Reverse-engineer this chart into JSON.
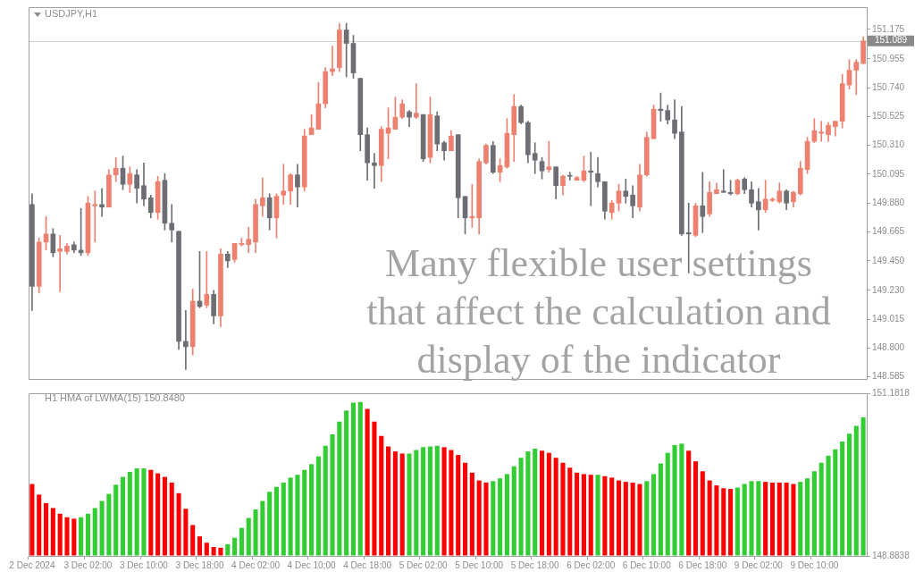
{
  "chart_data": [
    {
      "type": "candlestick",
      "title": "USDJPY,H1",
      "categories": [
        null,
        null,
        null,
        null,
        null,
        null,
        null,
        null,
        null,
        null,
        null,
        null,
        null,
        null,
        null,
        null,
        null,
        null,
        null,
        null,
        null,
        null,
        null,
        null,
        null,
        null,
        null,
        null,
        null,
        null,
        null,
        null,
        null,
        null,
        null,
        null,
        null,
        null,
        null,
        null,
        null,
        null,
        null,
        null,
        null,
        null,
        null,
        null,
        null,
        null,
        null,
        null,
        null,
        null,
        null,
        null,
        null,
        null,
        null,
        null,
        null,
        null,
        null,
        null,
        null,
        null,
        null,
        null,
        null,
        null,
        null,
        null,
        null,
        null,
        null,
        null,
        null,
        null,
        null,
        null,
        null,
        null,
        null,
        null,
        null,
        null,
        null,
        null,
        null,
        null,
        null,
        null,
        null,
        null,
        null,
        null,
        null,
        null,
        null,
        null,
        null,
        null,
        null,
        null,
        null,
        null,
        null,
        null,
        null,
        null,
        null,
        null,
        null,
        null,
        null,
        null,
        null,
        null,
        null,
        null
      ],
      "ohlc": [
        [
          149.87,
          149.95,
          149.08,
          149.26
        ],
        [
          149.26,
          149.62,
          149.21,
          149.59
        ],
        [
          149.59,
          149.78,
          149.53,
          149.65
        ],
        [
          149.65,
          149.69,
          149.48,
          149.51
        ],
        [
          149.52,
          149.64,
          149.22,
          149.54
        ],
        [
          149.52,
          149.58,
          149.5,
          149.56
        ],
        [
          149.57,
          149.59,
          149.51,
          149.53
        ],
        [
          149.53,
          149.84,
          149.49,
          149.51
        ],
        [
          149.51,
          149.93,
          149.49,
          149.88
        ],
        [
          149.86,
          149.97,
          149.59,
          149.87
        ],
        [
          149.87,
          149.99,
          149.78,
          149.85
        ],
        [
          149.85,
          150.13,
          149.85,
          150.09
        ],
        [
          150.09,
          150.22,
          150.04,
          150.14
        ],
        [
          150.14,
          150.23,
          149.98,
          150.02
        ],
        [
          150.02,
          150.15,
          149.96,
          150.1
        ],
        [
          150.09,
          150.13,
          149.88,
          149.99
        ],
        [
          150.01,
          150.18,
          149.86,
          149.91
        ],
        [
          149.92,
          149.94,
          149.77,
          149.81
        ],
        [
          149.81,
          150.08,
          149.76,
          150.04
        ],
        [
          150.05,
          150.1,
          149.68,
          149.73
        ],
        [
          149.73,
          149.87,
          149.59,
          149.68
        ],
        [
          149.67,
          149.67,
          148.79,
          148.85
        ],
        [
          148.85,
          149.08,
          148.64,
          148.81
        ],
        [
          148.81,
          149.24,
          148.75,
          149.15
        ],
        [
          149.15,
          149.52,
          149.1,
          149.11
        ],
        [
          149.12,
          149.52,
          149.1,
          149.2
        ],
        [
          149.2,
          149.23,
          148.98,
          149.04
        ],
        [
          149.04,
          149.54,
          148.96,
          149.5
        ],
        [
          149.5,
          149.52,
          149.4,
          149.45
        ],
        [
          149.46,
          149.58,
          149.44,
          149.58
        ],
        [
          149.57,
          149.62,
          149.56,
          149.58
        ],
        [
          149.57,
          149.7,
          149.51,
          149.61
        ],
        [
          149.59,
          149.91,
          149.51,
          149.87
        ],
        [
          149.86,
          150.07,
          149.78,
          149.92
        ],
        [
          149.92,
          149.95,
          149.68,
          149.77
        ],
        [
          149.77,
          149.95,
          149.62,
          149.93
        ],
        [
          149.94,
          150.17,
          149.87,
          149.97
        ],
        [
          149.97,
          150.1,
          149.87,
          150.09
        ],
        [
          150.09,
          150.17,
          149.85,
          150.0
        ],
        [
          150.0,
          150.43,
          149.97,
          150.38
        ],
        [
          150.39,
          150.54,
          150.39,
          150.44
        ],
        [
          150.43,
          150.78,
          150.43,
          150.62
        ],
        [
          150.62,
          150.89,
          150.59,
          150.86
        ],
        [
          150.86,
          151.05,
          150.83,
          150.88
        ],
        [
          150.89,
          151.22,
          150.86,
          151.17
        ],
        [
          151.17,
          151.22,
          150.82,
          151.07
        ],
        [
          151.07,
          151.13,
          150.81,
          150.85
        ],
        [
          150.81,
          150.81,
          150.27,
          150.39
        ],
        [
          150.39,
          150.44,
          150.05,
          150.18
        ],
        [
          150.18,
          150.25,
          149.99,
          150.16
        ],
        [
          150.16,
          150.45,
          150.04,
          150.43
        ],
        [
          150.4,
          150.59,
          150.21,
          150.44
        ],
        [
          150.43,
          150.67,
          150.43,
          150.52
        ],
        [
          150.52,
          150.65,
          150.51,
          150.62
        ],
        [
          150.56,
          150.57,
          150.45,
          150.52
        ],
        [
          150.52,
          150.77,
          150.51,
          150.55
        ],
        [
          150.54,
          150.54,
          150.19,
          150.21
        ],
        [
          150.22,
          150.67,
          150.18,
          150.54
        ],
        [
          150.53,
          150.56,
          150.27,
          150.32
        ],
        [
          150.33,
          150.34,
          150.2,
          150.27
        ],
        [
          150.27,
          150.42,
          150.27,
          150.38
        ],
        [
          150.39,
          150.39,
          149.77,
          149.92
        ],
        [
          149.93,
          149.93,
          149.65,
          149.77
        ],
        [
          149.77,
          150.02,
          149.7,
          149.78
        ],
        [
          149.77,
          150.21,
          149.65,
          150.19
        ],
        [
          150.18,
          150.32,
          150.17,
          150.31
        ],
        [
          150.31,
          150.34,
          150.1,
          150.11
        ],
        [
          150.11,
          150.21,
          150.04,
          150.16
        ],
        [
          150.15,
          150.51,
          150.14,
          150.4
        ],
        [
          150.39,
          150.69,
          150.19,
          150.6
        ],
        [
          150.6,
          150.61,
          150.47,
          150.48
        ],
        [
          150.48,
          150.49,
          150.18,
          150.24
        ],
        [
          150.25,
          150.33,
          150.1,
          150.2
        ],
        [
          150.19,
          150.22,
          150.06,
          150.12
        ],
        [
          150.13,
          150.34,
          150.11,
          150.15
        ],
        [
          150.15,
          150.15,
          149.91,
          150.01
        ],
        [
          150.01,
          150.09,
          149.94,
          150.08
        ],
        [
          150.08,
          150.11,
          150.05,
          150.08
        ],
        [
          150.05,
          150.08,
          150.05,
          150.07
        ],
        [
          150.05,
          150.23,
          150.04,
          150.12
        ],
        [
          150.12,
          150.26,
          149.86,
          150.11
        ],
        [
          150.1,
          150.22,
          150.0,
          150.04
        ],
        [
          150.04,
          150.04,
          149.76,
          149.82
        ],
        [
          149.81,
          149.9,
          149.76,
          149.88
        ],
        [
          149.88,
          150.02,
          149.82,
          149.97
        ],
        [
          149.97,
          150.06,
          149.88,
          149.93
        ],
        [
          149.94,
          150.01,
          149.77,
          149.86
        ],
        [
          149.85,
          150.17,
          149.82,
          150.09
        ],
        [
          150.09,
          150.41,
          150.08,
          150.37
        ],
        [
          150.36,
          150.61,
          150.36,
          150.58
        ],
        [
          150.58,
          150.7,
          150.49,
          150.57
        ],
        [
          150.57,
          150.61,
          150.47,
          150.5
        ],
        [
          150.5,
          150.65,
          150.36,
          150.4
        ],
        [
          150.41,
          150.6,
          149.64,
          149.65
        ],
        [
          149.66,
          149.88,
          149.36,
          149.65
        ],
        [
          149.64,
          149.88,
          149.63,
          149.86
        ],
        [
          149.86,
          150.11,
          149.66,
          149.78
        ],
        [
          149.8,
          150.04,
          149.78,
          149.96
        ],
        [
          149.95,
          150.03,
          149.95,
          149.98
        ],
        [
          149.97,
          150.13,
          149.96,
          149.96
        ],
        [
          149.96,
          150.05,
          149.94,
          149.95
        ],
        [
          149.95,
          150.06,
          149.94,
          150.05
        ],
        [
          150.06,
          150.07,
          149.95,
          149.98
        ],
        [
          149.98,
          150.04,
          149.85,
          149.88
        ],
        [
          149.89,
          149.99,
          149.68,
          149.83
        ],
        [
          149.83,
          150.05,
          149.81,
          149.91
        ],
        [
          149.9,
          149.92,
          149.89,
          149.91
        ],
        [
          149.89,
          150.03,
          149.88,
          149.97
        ],
        [
          149.97,
          149.98,
          149.83,
          149.88
        ],
        [
          149.89,
          149.97,
          149.85,
          149.96
        ],
        [
          149.95,
          150.19,
          149.94,
          150.14
        ],
        [
          150.13,
          150.37,
          150.1,
          150.34
        ],
        [
          150.34,
          150.51,
          150.33,
          150.42
        ],
        [
          150.4,
          150.49,
          150.34,
          150.41
        ],
        [
          150.39,
          150.48,
          150.34,
          150.46
        ],
        [
          150.45,
          150.49,
          150.38,
          150.49
        ],
        [
          150.49,
          150.84,
          150.44,
          150.77
        ],
        [
          150.76,
          150.95,
          150.73,
          150.87
        ],
        [
          150.87,
          150.95,
          150.69,
          150.93
        ],
        [
          150.92,
          151.12,
          150.92,
          151.089
        ]
      ],
      "colors": [
        "#6c6e73",
        "#ee8070",
        "#ee8070",
        "#6c6e73",
        "#ee8070",
        "#ee8070",
        "#6c6e73",
        "#6c6e73",
        "#ee8070",
        "#ee8070",
        "#6c6e73",
        "#ee8070",
        "#ee8070",
        "#6c6e73",
        "#ee8070",
        "#6c6e73",
        "#6c6e73",
        "#6c6e73",
        "#ee8070",
        "#6c6e73",
        "#6c6e73",
        "#6c6e73",
        "#6c6e73",
        "#ee8070",
        "#6c6e73",
        "#ee8070",
        "#6c6e73",
        "#ee8070",
        "#6c6e73",
        "#ee8070",
        "#ee8070",
        "#ee8070",
        "#ee8070",
        "#ee8070",
        "#6c6e73",
        "#ee8070",
        "#ee8070",
        "#ee8070",
        "#6c6e73",
        "#ee8070",
        "#ee8070",
        "#ee8070",
        "#ee8070",
        "#ee8070",
        "#ee8070",
        "#6c6e73",
        "#6c6e73",
        "#6c6e73",
        "#6c6e73",
        "#6c6e73",
        "#ee8070",
        "#ee8070",
        "#ee8070",
        "#ee8070",
        "#6c6e73",
        "#ee8070",
        "#6c6e73",
        "#ee8070",
        "#6c6e73",
        "#6c6e73",
        "#ee8070",
        "#6c6e73",
        "#6c6e73",
        "#ee8070",
        "#ee8070",
        "#ee8070",
        "#6c6e73",
        "#ee8070",
        "#ee8070",
        "#ee8070",
        "#6c6e73",
        "#6c6e73",
        "#6c6e73",
        "#6c6e73",
        "#ee8070",
        "#6c6e73",
        "#ee8070",
        "#6c6e73",
        "#ee8070",
        "#ee8070",
        "#6c6e73",
        "#6c6e73",
        "#6c6e73",
        "#ee8070",
        "#ee8070",
        "#6c6e73",
        "#6c6e73",
        "#ee8070",
        "#ee8070",
        "#ee8070",
        "#6c6e73",
        "#6c6e73",
        "#6c6e73",
        "#6c6e73",
        "#6c6e73",
        "#ee8070",
        "#6c6e73",
        "#ee8070",
        "#ee8070",
        "#6c6e73",
        "#6c6e73",
        "#ee8070",
        "#6c6e73",
        "#6c6e73",
        "#6c6e73",
        "#ee8070",
        "#ee8070",
        "#ee8070",
        "#6c6e73",
        "#ee8070",
        "#ee8070",
        "#ee8070",
        "#ee8070",
        "#ee8070",
        "#ee8070",
        "#ee8070",
        "#ee8070",
        "#ee8070",
        "#ee8070",
        "#ee8070"
      ],
      "ylim": [
        148.57,
        151.34
      ],
      "yticks": [
        148.585,
        {
          "value": 148.8,
          "label": "148.800"
        },
        149.015,
        {
          "value": 149.23,
          "label": "149.230"
        },
        {
          "value": 149.45,
          "label": "149.450"
        },
        149.665,
        {
          "value": 149.88,
          "label": "149.880"
        },
        150.095,
        {
          "value": 150.31,
          "label": "150.310"
        },
        150.525,
        {
          "value": 150.74,
          "label": "150.740"
        },
        150.955,
        151.175
      ],
      "tick_labels": "y",
      "ref_lines": [
        {
          "axis": "y",
          "value": 151.089,
          "label": "151.089",
          "color": "#d0d0d0"
        }
      ],
      "annotations": [
        "Many flexible user settings that affect the calculation and display of the indicator"
      ]
    },
    {
      "type": "bar",
      "title": "H1 HMA of LWMA(15) 150.8480",
      "categories": [
        "2 Dec 2024",
        null,
        null,
        null,
        null,
        null,
        null,
        null,
        "3 Dec 02:00",
        null,
        null,
        null,
        null,
        null,
        null,
        null,
        "3 Dec 10:00",
        null,
        null,
        null,
        null,
        null,
        null,
        null,
        "3 Dec 18:00",
        null,
        null,
        null,
        null,
        null,
        null,
        null,
        "4 Dec 02:00",
        null,
        null,
        null,
        null,
        null,
        null,
        null,
        "4 Dec 10:00",
        null,
        null,
        null,
        null,
        null,
        null,
        null,
        "4 Dec 18:00",
        null,
        null,
        null,
        null,
        null,
        null,
        null,
        "5 Dec 02:00",
        null,
        null,
        null,
        null,
        null,
        null,
        null,
        "5 Dec 10:00",
        null,
        null,
        null,
        null,
        null,
        null,
        null,
        "5 Dec 18:00",
        null,
        null,
        null,
        null,
        null,
        null,
        null,
        "6 Dec 02:00",
        null,
        null,
        null,
        null,
        null,
        null,
        null,
        "6 Dec 10:00",
        null,
        null,
        null,
        null,
        null,
        null,
        null,
        "6 Dec 18:00",
        null,
        null,
        null,
        null,
        null,
        null,
        null,
        "9 Dec 02:00",
        null,
        null,
        null,
        null,
        null,
        null,
        null,
        "9 Dec 10:00",
        null,
        null,
        null,
        null,
        null,
        null,
        null
      ],
      "values": [
        149.9,
        149.75,
        149.63,
        149.56,
        149.48,
        149.43,
        149.41,
        149.43,
        149.48,
        149.56,
        149.66,
        149.76,
        149.89,
        150.0,
        150.07,
        150.12,
        150.12,
        150.1,
        150.05,
        150.0,
        149.92,
        149.77,
        149.55,
        149.32,
        149.16,
        149.07,
        149.01,
        149.0,
        149.05,
        149.14,
        149.28,
        149.42,
        149.54,
        149.66,
        149.79,
        149.86,
        149.92,
        149.99,
        150.03,
        150.1,
        150.18,
        150.29,
        150.44,
        150.6,
        150.78,
        150.94,
        151.05,
        151.06,
        150.96,
        150.78,
        150.58,
        150.43,
        150.36,
        150.33,
        150.33,
        150.38,
        150.42,
        150.43,
        150.44,
        150.42,
        150.38,
        150.31,
        150.2,
        150.06,
        149.95,
        149.92,
        149.94,
        149.98,
        150.04,
        150.15,
        150.27,
        150.36,
        150.4,
        150.37,
        150.34,
        150.27,
        150.2,
        150.13,
        150.06,
        150.04,
        150.03,
        150.03,
        150.01,
        149.99,
        149.95,
        149.93,
        149.92,
        149.9,
        149.94,
        150.04,
        150.19,
        150.34,
        150.45,
        150.47,
        150.37,
        150.22,
        150.08,
        149.95,
        149.88,
        149.84,
        149.83,
        149.85,
        149.9,
        149.94,
        149.94,
        149.93,
        149.92,
        149.92,
        149.92,
        149.9,
        149.93,
        149.98,
        150.08,
        150.2,
        150.3,
        150.39,
        150.5,
        150.61,
        150.72,
        150.84
      ],
      "colors": [
        "#ff0000",
        "#ff0000",
        "#ff0000",
        "#ff0000",
        "#ff0000",
        "#ff0000",
        "#ff0000",
        "#32cd32",
        "#32cd32",
        "#32cd32",
        "#32cd32",
        "#32cd32",
        "#32cd32",
        "#32cd32",
        "#32cd32",
        "#32cd32",
        "#32cd32",
        "#ff0000",
        "#ff0000",
        "#ff0000",
        "#ff0000",
        "#ff0000",
        "#ff0000",
        "#ff0000",
        "#ff0000",
        "#ff0000",
        "#ff0000",
        "#ff0000",
        "#32cd32",
        "#32cd32",
        "#32cd32",
        "#32cd32",
        "#32cd32",
        "#32cd32",
        "#32cd32",
        "#32cd32",
        "#32cd32",
        "#32cd32",
        "#32cd32",
        "#32cd32",
        "#32cd32",
        "#32cd32",
        "#32cd32",
        "#32cd32",
        "#32cd32",
        "#32cd32",
        "#32cd32",
        "#32cd32",
        "#ff0000",
        "#ff0000",
        "#ff0000",
        "#ff0000",
        "#ff0000",
        "#ff0000",
        "#32cd32",
        "#32cd32",
        "#32cd32",
        "#32cd32",
        "#32cd32",
        "#ff0000",
        "#ff0000",
        "#ff0000",
        "#ff0000",
        "#ff0000",
        "#ff0000",
        "#ff0000",
        "#32cd32",
        "#32cd32",
        "#32cd32",
        "#32cd32",
        "#32cd32",
        "#32cd32",
        "#32cd32",
        "#ff0000",
        "#ff0000",
        "#ff0000",
        "#ff0000",
        "#ff0000",
        "#ff0000",
        "#ff0000",
        "#ff0000",
        "#32cd32",
        "#ff0000",
        "#ff0000",
        "#ff0000",
        "#ff0000",
        "#ff0000",
        "#ff0000",
        "#32cd32",
        "#32cd32",
        "#32cd32",
        "#32cd32",
        "#32cd32",
        "#32cd32",
        "#ff0000",
        "#ff0000",
        "#ff0000",
        "#ff0000",
        "#ff0000",
        "#ff0000",
        "#ff0000",
        "#32cd32",
        "#32cd32",
        "#32cd32",
        "#32cd32",
        "#ff0000",
        "#ff0000",
        "#ff0000",
        "#ff0000",
        "#ff0000",
        "#32cd32",
        "#32cd32",
        "#32cd32",
        "#32cd32",
        "#32cd32",
        "#32cd32",
        "#32cd32",
        "#32cd32",
        "#32cd32",
        "#32cd32"
      ],
      "ylim": [
        148.8838,
        151.1818
      ],
      "yticks": [
        148.8838,
        151.1818
      ]
    }
  ]
}
